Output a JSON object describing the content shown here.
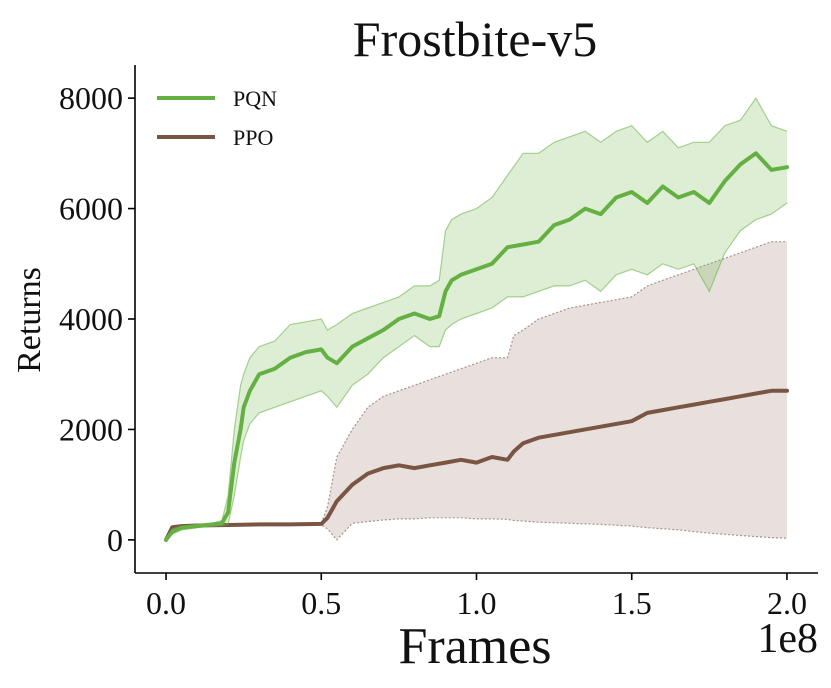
{
  "chart_data": {
    "type": "line",
    "title": "Frostbite-v5",
    "xlabel": "Frames",
    "ylabel": "Returns",
    "x_offset_label": "1e8",
    "xlim": [
      -0.1,
      2.1
    ],
    "ylim": [
      -600,
      8600
    ],
    "x_ticks": [
      0.0,
      0.5,
      1.0,
      1.5,
      2.0
    ],
    "x_tick_labels": [
      "0.0",
      "0.5",
      "1.0",
      "1.5",
      "2.0"
    ],
    "y_ticks": [
      0,
      2000,
      4000,
      6000,
      8000
    ],
    "y_tick_labels": [
      "0",
      "2000",
      "4000",
      "6000",
      "8000"
    ],
    "grid": false,
    "legend_position": "top-left",
    "colors": {
      "pqn": "#65b042",
      "ppo": "#7b5544"
    },
    "series": [
      {
        "name": "PQN",
        "x": [
          0.0,
          0.02,
          0.05,
          0.1,
          0.15,
          0.18,
          0.2,
          0.22,
          0.24,
          0.25,
          0.27,
          0.3,
          0.35,
          0.4,
          0.45,
          0.5,
          0.52,
          0.55,
          0.6,
          0.65,
          0.7,
          0.75,
          0.8,
          0.85,
          0.88,
          0.9,
          0.92,
          0.95,
          1.0,
          1.05,
          1.1,
          1.15,
          1.2,
          1.25,
          1.3,
          1.35,
          1.4,
          1.45,
          1.5,
          1.55,
          1.6,
          1.65,
          1.7,
          1.75,
          1.8,
          1.85,
          1.9,
          1.95,
          2.0
        ],
        "y": [
          0,
          150,
          220,
          250,
          280,
          300,
          500,
          1400,
          2000,
          2400,
          2700,
          3000,
          3100,
          3300,
          3400,
          3450,
          3300,
          3200,
          3500,
          3650,
          3800,
          4000,
          4100,
          4000,
          4050,
          4500,
          4700,
          4800,
          4900,
          5000,
          5300,
          5350,
          5400,
          5700,
          5800,
          6000,
          5900,
          6200,
          6300,
          6100,
          6400,
          6200,
          6300,
          6100,
          6500,
          6800,
          7000,
          6700,
          6750
        ],
        "upper": [
          0,
          200,
          250,
          280,
          300,
          350,
          800,
          2000,
          2800,
          3000,
          3300,
          3500,
          3600,
          3900,
          3950,
          4000,
          3800,
          3900,
          4100,
          4200,
          4300,
          4400,
          4600,
          4600,
          4700,
          5600,
          5800,
          5900,
          6000,
          6200,
          6600,
          7000,
          7000,
          7200,
          7300,
          7400,
          7200,
          7400,
          7500,
          7200,
          7400,
          7100,
          7200,
          7200,
          7500,
          7600,
          8000,
          7500,
          7400
        ],
        "lower": [
          0,
          100,
          180,
          220,
          250,
          260,
          280,
          800,
          1500,
          1800,
          2100,
          2300,
          2400,
          2500,
          2600,
          2700,
          2600,
          2400,
          2800,
          3000,
          3300,
          3500,
          3700,
          3500,
          3500,
          3800,
          3900,
          4000,
          4100,
          4200,
          4400,
          4400,
          4500,
          4600,
          4600,
          4700,
          4500,
          4800,
          4900,
          4800,
          5000,
          4900,
          5000,
          4500,
          5200,
          5600,
          5800,
          5900,
          6100
        ]
      },
      {
        "name": "PPO",
        "x": [
          0.0,
          0.02,
          0.05,
          0.1,
          0.2,
          0.3,
          0.4,
          0.5,
          0.52,
          0.55,
          0.6,
          0.65,
          0.7,
          0.75,
          0.8,
          0.85,
          0.9,
          0.95,
          1.0,
          1.05,
          1.1,
          1.12,
          1.15,
          1.2,
          1.3,
          1.4,
          1.5,
          1.55,
          1.6,
          1.65,
          1.7,
          1.75,
          1.8,
          1.85,
          1.9,
          1.95,
          2.0
        ],
        "y": [
          0,
          230,
          250,
          260,
          270,
          280,
          280,
          290,
          400,
          700,
          1000,
          1200,
          1300,
          1350,
          1300,
          1350,
          1400,
          1450,
          1400,
          1500,
          1450,
          1600,
          1750,
          1850,
          1950,
          2050,
          2150,
          2300,
          2350,
          2400,
          2450,
          2500,
          2550,
          2600,
          2650,
          2700,
          2700
        ],
        "upper": [
          0,
          240,
          260,
          270,
          280,
          290,
          290,
          300,
          600,
          1500,
          2000,
          2400,
          2600,
          2700,
          2800,
          2900,
          3000,
          3100,
          3200,
          3300,
          3300,
          3700,
          3800,
          4000,
          4200,
          4300,
          4400,
          4600,
          4700,
          4800,
          4900,
          5000,
          5100,
          5200,
          5300,
          5400,
          5400
        ],
        "lower": [
          0,
          220,
          240,
          250,
          260,
          270,
          270,
          270,
          200,
          0,
          300,
          330,
          360,
          380,
          380,
          400,
          400,
          400,
          380,
          380,
          370,
          350,
          340,
          320,
          300,
          280,
          250,
          220,
          200,
          180,
          150,
          120,
          100,
          80,
          60,
          40,
          30
        ]
      }
    ]
  }
}
